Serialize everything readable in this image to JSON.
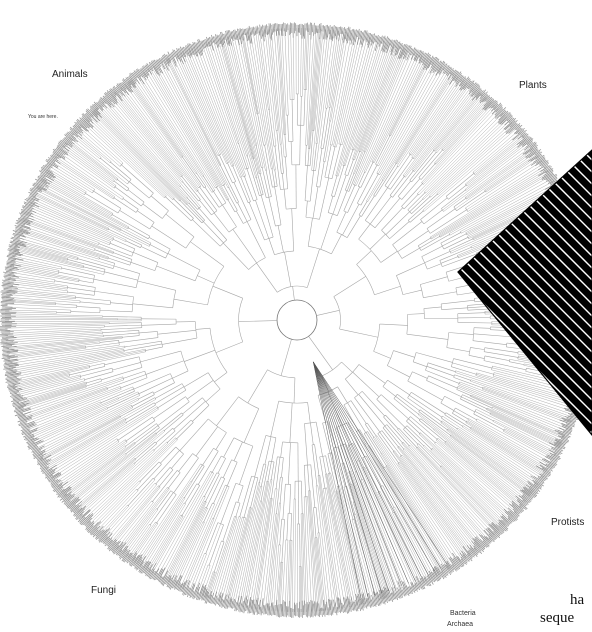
{
  "labels": {
    "animals": "Animals",
    "plants": "Plants",
    "fungi": "Fungi",
    "protists": "Protists",
    "bacteria": "Bacteria",
    "archaea": "Archaea",
    "you_are_here": "You are here."
  },
  "page_text": {
    "line1": "ha",
    "line2": "seque"
  },
  "colors": {
    "branch": "#a6a6a6",
    "rim": "#8a8a8a",
    "stripe": "#000000"
  }
}
